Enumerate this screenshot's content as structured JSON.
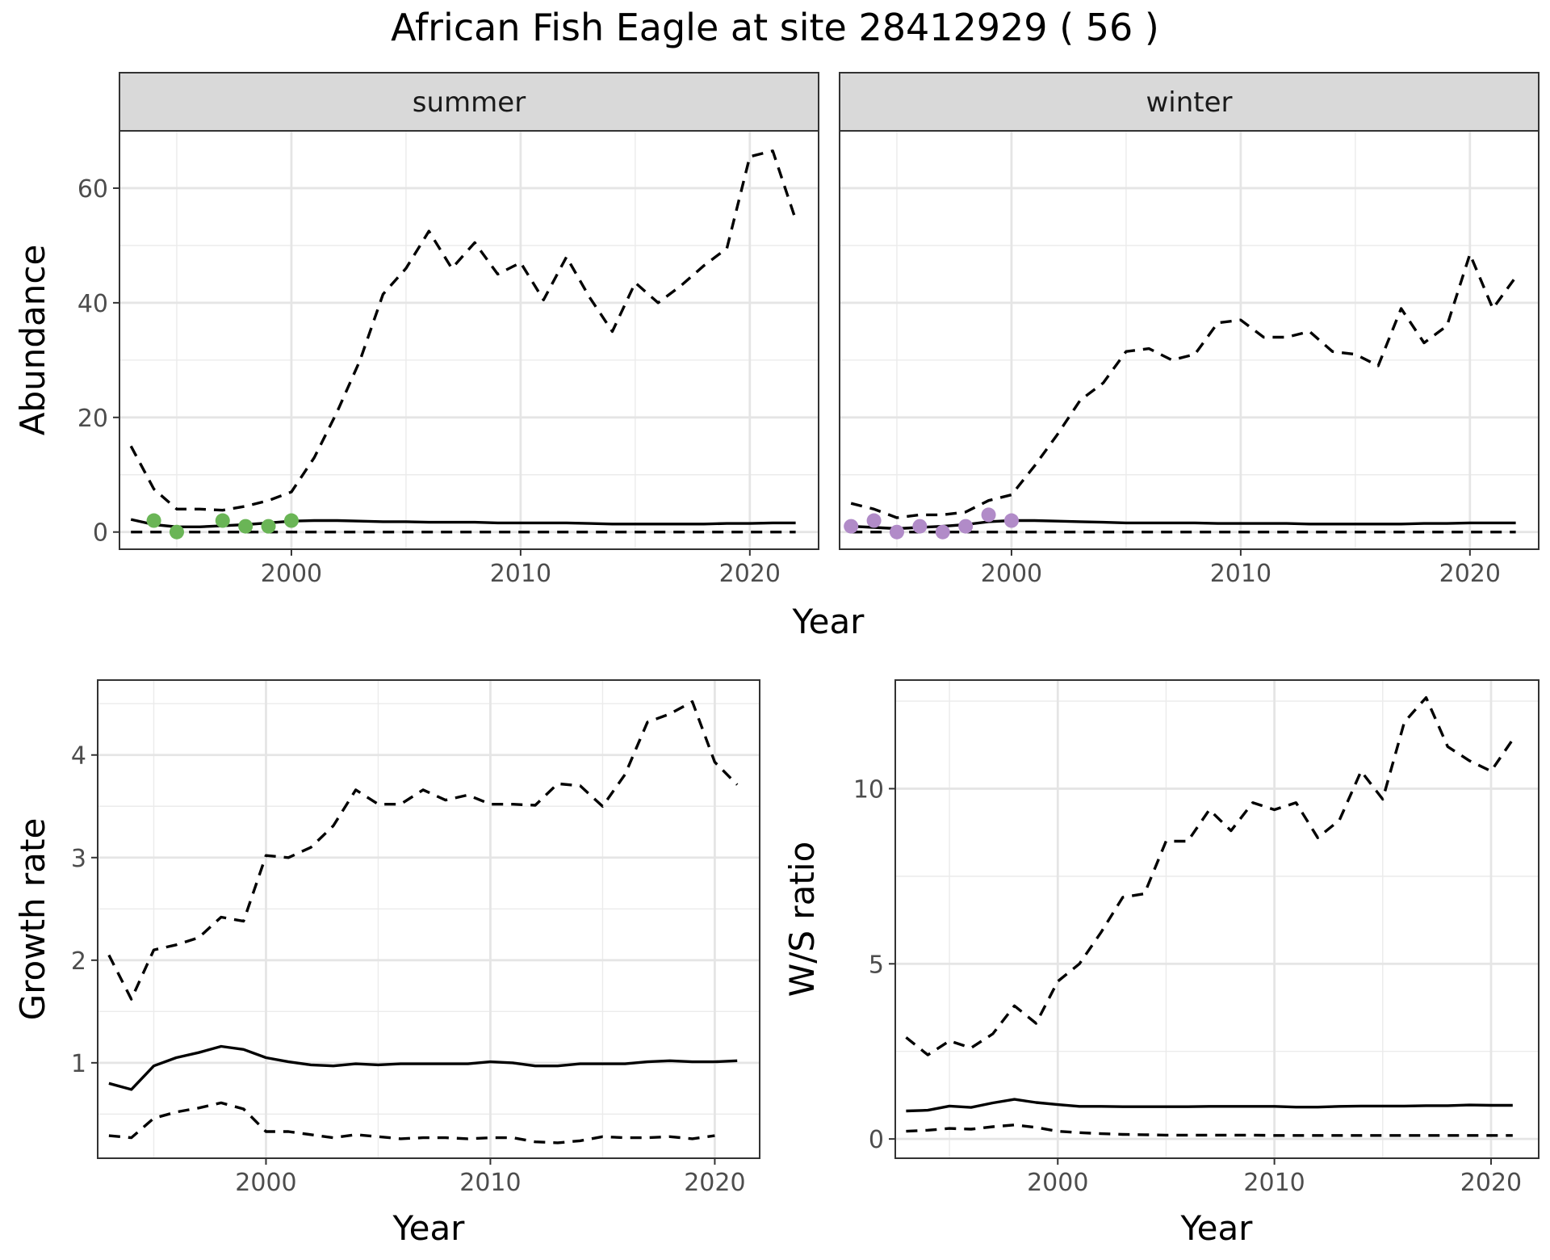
{
  "figure_title": "African Fish Eagle at site 28412929 ( 56 )",
  "chart_data": [
    {
      "id": "abundance",
      "type": "line",
      "facets": [
        "summer",
        "winter"
      ],
      "xlabel": "Year",
      "ylabel": "Abundance",
      "xlim": [
        1992.5,
        2023
      ],
      "ylim": [
        -3,
        70
      ],
      "xticks": [
        2000,
        2010,
        2020
      ],
      "yticks": [
        0,
        20,
        40,
        60
      ],
      "grid": true,
      "panels": [
        {
          "facet": "summer",
          "point_color": "#6ab556",
          "observed": {
            "x": [
              1994,
              1995,
              1997,
              1998,
              1999,
              2000
            ],
            "y": [
              2,
              0,
              2,
              1,
              1,
              2
            ]
          },
          "series": [
            {
              "style": "solid",
              "x": [
                1993,
                1994,
                1995,
                1996,
                1997,
                1998,
                1999,
                2000,
                2001,
                2002,
                2003,
                2004,
                2005,
                2006,
                2007,
                2008,
                2009,
                2010,
                2011,
                2012,
                2013,
                2014,
                2015,
                2016,
                2017,
                2018,
                2019,
                2020,
                2021,
                2022
              ],
              "y": [
                2.2,
                1.3,
                0.9,
                0.9,
                1.1,
                1.3,
                1.6,
                1.9,
                2.0,
                2.0,
                1.9,
                1.8,
                1.8,
                1.7,
                1.7,
                1.7,
                1.6,
                1.6,
                1.6,
                1.6,
                1.5,
                1.4,
                1.4,
                1.4,
                1.4,
                1.4,
                1.5,
                1.5,
                1.6,
                1.6
              ]
            },
            {
              "style": "dashed",
              "x": [
                1993,
                1994,
                1995,
                1996,
                1997,
                1998,
                1999,
                2000,
                2001,
                2002,
                2003,
                2004,
                2005,
                2006,
                2007,
                2008,
                2009,
                2010,
                2011,
                2012,
                2013,
                2014,
                2015,
                2016,
                2017,
                2018,
                2019,
                2020,
                2021,
                2022
              ],
              "y": [
                15,
                7.5,
                4,
                4,
                3.8,
                4.5,
                5.5,
                7,
                13,
                21,
                30,
                41.5,
                46,
                52.5,
                46,
                50.5,
                45,
                47,
                40.5,
                48,
                41,
                35,
                43.5,
                40,
                43,
                46.5,
                49.5,
                65.5,
                66.5,
                54.5
              ]
            },
            {
              "style": "dashed",
              "x": [
                1993,
                1994,
                1995,
                1996,
                1997,
                1998,
                1999,
                2000,
                2001,
                2002,
                2003,
                2004,
                2005,
                2006,
                2007,
                2008,
                2009,
                2010,
                2011,
                2012,
                2013,
                2014,
                2015,
                2016,
                2017,
                2018,
                2019,
                2020,
                2021,
                2022
              ],
              "y": [
                0,
                0,
                0,
                0,
                0,
                0,
                0,
                0,
                0,
                0,
                0,
                0,
                0,
                0,
                0,
                0,
                0,
                0,
                0,
                0,
                0,
                0,
                0,
                0,
                0,
                0,
                0,
                0,
                0,
                0
              ]
            }
          ]
        },
        {
          "facet": "winter",
          "point_color": "#b18bc8",
          "observed": {
            "x": [
              1993,
              1994,
              1995,
              1996,
              1997,
              1998,
              1999,
              2000
            ],
            "y": [
              1,
              2,
              0,
              1,
              0,
              1,
              3,
              2
            ]
          },
          "series": [
            {
              "style": "solid",
              "x": [
                1993,
                1994,
                1995,
                1996,
                1997,
                1998,
                1999,
                2000,
                2001,
                2002,
                2003,
                2004,
                2005,
                2006,
                2007,
                2008,
                2009,
                2010,
                2011,
                2012,
                2013,
                2014,
                2015,
                2016,
                2017,
                2018,
                2019,
                2020,
                2021,
                2022
              ],
              "y": [
                1.0,
                0.8,
                0.6,
                0.8,
                1.0,
                1.3,
                1.8,
                2.0,
                2.0,
                1.9,
                1.8,
                1.7,
                1.6,
                1.6,
                1.6,
                1.6,
                1.5,
                1.5,
                1.5,
                1.5,
                1.4,
                1.4,
                1.4,
                1.4,
                1.4,
                1.5,
                1.5,
                1.6,
                1.6,
                1.6
              ]
            },
            {
              "style": "dashed",
              "x": [
                1993,
                1994,
                1995,
                1996,
                1997,
                1998,
                1999,
                2000,
                2001,
                2002,
                2003,
                2004,
                2005,
                2006,
                2007,
                2008,
                2009,
                2010,
                2011,
                2012,
                2013,
                2014,
                2015,
                2016,
                2017,
                2018,
                2019,
                2020,
                2021,
                2022
              ],
              "y": [
                5,
                4,
                2.5,
                3,
                3,
                3.5,
                5.5,
                6.5,
                11.5,
                17,
                23,
                26,
                31.5,
                32,
                30,
                31,
                36.5,
                37,
                34,
                34,
                35,
                31.5,
                31,
                29,
                39,
                33,
                36,
                48.5,
                39,
                44.5
              ]
            },
            {
              "style": "dashed",
              "x": [
                1993,
                1994,
                1995,
                1996,
                1997,
                1998,
                1999,
                2000,
                2001,
                2002,
                2003,
                2004,
                2005,
                2006,
                2007,
                2008,
                2009,
                2010,
                2011,
                2012,
                2013,
                2014,
                2015,
                2016,
                2017,
                2018,
                2019,
                2020,
                2021,
                2022
              ],
              "y": [
                0,
                0,
                0,
                0,
                0,
                0,
                0,
                0,
                0,
                0,
                0,
                0,
                0,
                0,
                0,
                0,
                0,
                0,
                0,
                0,
                0,
                0,
                0,
                0,
                0,
                0,
                0,
                0,
                0,
                0
              ]
            }
          ]
        }
      ]
    },
    {
      "id": "growth",
      "type": "line",
      "xlabel": "Year",
      "ylabel": "Growth rate",
      "xlim": [
        1992.5,
        2022
      ],
      "ylim": [
        0.07,
        4.73
      ],
      "xticks": [
        2000,
        2010,
        2020
      ],
      "yticks": [
        1,
        2,
        3,
        4
      ],
      "grid": true,
      "series": [
        {
          "style": "solid",
          "x": [
            1993,
            1994,
            1995,
            1996,
            1997,
            1998,
            1999,
            2000,
            2001,
            2002,
            2003,
            2004,
            2005,
            2006,
            2007,
            2008,
            2009,
            2010,
            2011,
            2012,
            2013,
            2014,
            2015,
            2016,
            2017,
            2018,
            2019,
            2020,
            2021
          ],
          "y": [
            0.8,
            0.74,
            0.97,
            1.05,
            1.1,
            1.16,
            1.13,
            1.05,
            1.01,
            0.98,
            0.97,
            0.99,
            0.98,
            0.99,
            0.99,
            0.99,
            0.99,
            1.01,
            1.0,
            0.97,
            0.97,
            0.99,
            0.99,
            0.99,
            1.01,
            1.02,
            1.01,
            1.01,
            1.02
          ]
        },
        {
          "style": "dashed",
          "x": [
            1993,
            1994,
            1995,
            1996,
            1997,
            1998,
            1999,
            2000,
            2001,
            2002,
            2003,
            2004,
            2005,
            2006,
            2007,
            2008,
            2009,
            2010,
            2011,
            2012,
            2013,
            2014,
            2015,
            2016,
            2017,
            2018,
            2019,
            2020,
            2021
          ],
          "y": [
            2.05,
            1.62,
            2.1,
            2.15,
            2.22,
            2.42,
            2.38,
            3.02,
            3.0,
            3.1,
            3.31,
            3.66,
            3.52,
            3.52,
            3.66,
            3.56,
            3.61,
            3.52,
            3.52,
            3.51,
            3.72,
            3.7,
            3.5,
            3.81,
            4.32,
            4.4,
            4.52,
            3.93,
            3.71
          ]
        },
        {
          "style": "dashed",
          "x": [
            1993,
            1994,
            1995,
            1996,
            1997,
            1998,
            1999,
            2000,
            2001,
            2002,
            2003,
            2004,
            2005,
            2006,
            2007,
            2008,
            2009,
            2010,
            2011,
            2012,
            2013,
            2014,
            2015,
            2016,
            2017,
            2018,
            2019,
            2020
          ],
          "y": [
            0.29,
            0.27,
            0.46,
            0.52,
            0.56,
            0.61,
            0.55,
            0.33,
            0.33,
            0.3,
            0.27,
            0.3,
            0.28,
            0.26,
            0.27,
            0.27,
            0.26,
            0.27,
            0.27,
            0.23,
            0.22,
            0.24,
            0.28,
            0.27,
            0.27,
            0.28,
            0.26,
            0.29
          ]
        }
      ]
    },
    {
      "id": "ratio",
      "type": "line",
      "xlabel": "Year",
      "ylabel": "W/S ratio",
      "xlim": [
        1992.5,
        2022.2
      ],
      "ylim": [
        -0.55,
        13.1
      ],
      "xticks": [
        2000,
        2010,
        2020
      ],
      "yticks": [
        0,
        5,
        10
      ],
      "grid": true,
      "series": [
        {
          "style": "solid",
          "x": [
            1993,
            1994,
            1995,
            1996,
            1997,
            1998,
            1999,
            2000,
            2001,
            2002,
            2003,
            2004,
            2005,
            2006,
            2007,
            2008,
            2009,
            2010,
            2011,
            2012,
            2013,
            2014,
            2015,
            2016,
            2017,
            2018,
            2019,
            2020,
            2021
          ],
          "y": [
            0.8,
            0.82,
            0.94,
            0.9,
            1.03,
            1.13,
            1.04,
            0.98,
            0.93,
            0.93,
            0.92,
            0.92,
            0.92,
            0.92,
            0.93,
            0.93,
            0.93,
            0.93,
            0.91,
            0.91,
            0.93,
            0.94,
            0.94,
            0.94,
            0.95,
            0.95,
            0.97,
            0.96,
            0.96
          ]
        },
        {
          "style": "dashed",
          "x": [
            1993,
            1994,
            1995,
            1996,
            1997,
            1998,
            1999,
            2000,
            2001,
            2002,
            2003,
            2004,
            2005,
            2006,
            2007,
            2008,
            2009,
            2010,
            2011,
            2012,
            2013,
            2014,
            2015,
            2016,
            2017,
            2018,
            2019,
            2020,
            2021
          ],
          "y": [
            2.9,
            2.4,
            2.8,
            2.6,
            3.0,
            3.8,
            3.3,
            4.5,
            5.0,
            5.9,
            6.9,
            7.0,
            8.5,
            8.5,
            9.4,
            8.8,
            9.6,
            9.4,
            9.6,
            8.6,
            9.1,
            10.5,
            9.7,
            11.9,
            12.6,
            11.2,
            10.8,
            10.5,
            11.4
          ]
        },
        {
          "style": "dashed",
          "x": [
            1993,
            1994,
            1995,
            1996,
            1997,
            1998,
            1999,
            2000,
            2001,
            2002,
            2003,
            2004,
            2005,
            2006,
            2007,
            2008,
            2009,
            2010,
            2011,
            2012,
            2013,
            2014,
            2015,
            2016,
            2017,
            2018,
            2019,
            2020,
            2021
          ],
          "y": [
            0.22,
            0.25,
            0.3,
            0.28,
            0.35,
            0.4,
            0.33,
            0.22,
            0.18,
            0.15,
            0.13,
            0.12,
            0.11,
            0.11,
            0.11,
            0.11,
            0.11,
            0.1,
            0.1,
            0.1,
            0.1,
            0.1,
            0.1,
            0.1,
            0.1,
            0.1,
            0.1,
            0.1,
            0.1
          ]
        }
      ]
    }
  ]
}
